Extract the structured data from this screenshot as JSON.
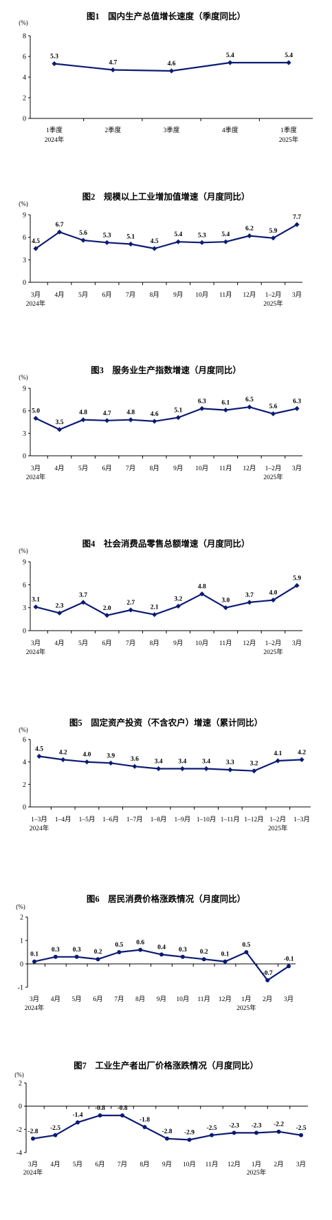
{
  "colors": {
    "line": "#0b1a73",
    "axis": "#000000"
  },
  "chart_data": [
    {
      "type": "line",
      "title": "图1　国内生产总值增长速度（季度同比）",
      "unit": "(%)",
      "ylim": [
        0,
        8
      ],
      "yticks": [
        0,
        2,
        4,
        6,
        8
      ],
      "categories": [
        "1季度",
        "2季度",
        "3季度",
        "4季度",
        "1季度"
      ],
      "year_labels": [
        {
          "index": 0,
          "text": "2024年"
        },
        {
          "index": 4,
          "text": "2025年"
        }
      ],
      "values": [
        5.3,
        4.7,
        4.6,
        5.4,
        5.4
      ],
      "value_labels": [
        "5.3",
        "4.7",
        "4.6",
        "5.4",
        "5.4"
      ]
    },
    {
      "type": "line",
      "title": "图2　规模以上工业增加值增速（月度同比）",
      "unit": "(%)",
      "ylim": [
        0,
        9
      ],
      "yticks": [
        0,
        3,
        6,
        9
      ],
      "categories": [
        "3月",
        "4月",
        "5月",
        "6月",
        "7月",
        "8月",
        "9月",
        "10月",
        "11月",
        "12月",
        "1–2月",
        "3月"
      ],
      "year_labels": [
        {
          "index": 0,
          "text": "2024年"
        },
        {
          "index": 10,
          "text": "2025年"
        }
      ],
      "values": [
        4.5,
        6.7,
        5.6,
        5.3,
        5.1,
        4.5,
        5.4,
        5.3,
        5.4,
        6.2,
        5.9,
        7.7
      ],
      "value_labels": [
        "4.5",
        "6.7",
        "5.6",
        "5.3",
        "5.1",
        "4.5",
        "5.4",
        "5.3",
        "5.4",
        "6.2",
        "5.9",
        "7.7"
      ]
    },
    {
      "type": "line",
      "title": "图3　服务业生产指数增速（月度同比）",
      "unit": "(%)",
      "ylim": [
        0,
        9
      ],
      "yticks": [
        0,
        3,
        6,
        9
      ],
      "categories": [
        "3月",
        "4月",
        "5月",
        "6月",
        "7月",
        "8月",
        "9月",
        "10月",
        "11月",
        "12月",
        "1–2月",
        "3月"
      ],
      "year_labels": [
        {
          "index": 0,
          "text": "2024年"
        },
        {
          "index": 10,
          "text": "2025年"
        }
      ],
      "values": [
        5.0,
        3.5,
        4.8,
        4.7,
        4.8,
        4.6,
        5.1,
        6.3,
        6.1,
        6.5,
        5.6,
        6.3
      ],
      "value_labels": [
        "5.0",
        "3.5",
        "4.8",
        "4.7",
        "4.8",
        "4.6",
        "5.1",
        "6.3",
        "6.1",
        "6.5",
        "5.6",
        "6.3"
      ]
    },
    {
      "type": "line",
      "title": "图4　社会消费品零售总额增速（月度同比）",
      "unit": "(%)",
      "ylim": [
        0,
        9
      ],
      "yticks": [
        0,
        3,
        6,
        9
      ],
      "categories": [
        "3月",
        "4月",
        "5月",
        "6月",
        "7月",
        "8月",
        "9月",
        "10月",
        "11月",
        "12月",
        "1–2月",
        "3月"
      ],
      "year_labels": [
        {
          "index": 0,
          "text": "2024年"
        },
        {
          "index": 10,
          "text": "2025年"
        }
      ],
      "values": [
        3.1,
        2.3,
        3.7,
        2.0,
        2.7,
        2.1,
        3.2,
        4.8,
        3.0,
        3.7,
        4.0,
        5.9
      ],
      "value_labels": [
        "3.1",
        "2.3",
        "3.7",
        "2.0",
        "2.7",
        "2.1",
        "3.2",
        "4.8",
        "3.0",
        "3.7",
        "4.0",
        "5.9"
      ]
    },
    {
      "type": "line",
      "title": "图5　固定资产投资（不含农户）增速（累计同比）",
      "unit": "(%)",
      "ylim": [
        0,
        6
      ],
      "yticks": [
        0,
        2,
        4,
        6
      ],
      "categories": [
        "1–3月",
        "1–4月",
        "1–5月",
        "1–6月",
        "1–7月",
        "1–8月",
        "1–9月",
        "1–10月",
        "1–11月",
        "1–12月",
        "1–2月",
        "1–3月"
      ],
      "year_labels": [
        {
          "index": 0,
          "text": "2024年"
        },
        {
          "index": 10,
          "text": "2025年"
        }
      ],
      "values": [
        4.5,
        4.2,
        4.0,
        3.9,
        3.6,
        3.4,
        3.4,
        3.4,
        3.3,
        3.2,
        4.1,
        4.2
      ],
      "value_labels": [
        "4.5",
        "4.2",
        "4.0",
        "3.9",
        "3.6",
        "3.4",
        "3.4",
        "3.4",
        "3.3",
        "3.2",
        "4.1",
        "4.2"
      ]
    },
    {
      "type": "line",
      "title": "图6　居民消费价格涨跌情况（月度同比）",
      "unit": "(%)",
      "ylim": [
        -1,
        2
      ],
      "yticks": [
        -1,
        0,
        1,
        2
      ],
      "categories": [
        "3月",
        "4月",
        "5月",
        "6月",
        "7月",
        "8月",
        "9月",
        "10月",
        "11月",
        "12月",
        "1月",
        "2月",
        "3月"
      ],
      "year_labels": [
        {
          "index": 0,
          "text": "2024年"
        },
        {
          "index": 10,
          "text": "2025年"
        }
      ],
      "values": [
        0.1,
        0.3,
        0.3,
        0.2,
        0.5,
        0.6,
        0.4,
        0.3,
        0.2,
        0.1,
        0.5,
        -0.7,
        -0.1
      ],
      "value_labels": [
        "0.1",
        "0.3",
        "0.3",
        "0.2",
        "0.5",
        "0.6",
        "0.4",
        "0.3",
        "0.2",
        "0.1",
        "0.5",
        "-0.7",
        "-0.1"
      ],
      "markers": "circle"
    },
    {
      "type": "line",
      "title": "图7　工业生产者出厂价格涨跌情况（月度同比）",
      "unit": "(%)",
      "ylim": [
        -4,
        2
      ],
      "yticks": [
        -4,
        -2,
        0,
        2
      ],
      "categories": [
        "3月",
        "4月",
        "5月",
        "6月",
        "7月",
        "8月",
        "9月",
        "10月",
        "11月",
        "12月",
        "1月",
        "2月",
        "3月"
      ],
      "year_labels": [
        {
          "index": 0,
          "text": "2024年"
        },
        {
          "index": 10,
          "text": "2025年"
        }
      ],
      "values": [
        -2.8,
        -2.5,
        -1.4,
        -0.8,
        -0.8,
        -1.8,
        -2.8,
        -2.9,
        -2.5,
        -2.3,
        -2.3,
        -2.2,
        -2.5
      ],
      "value_labels": [
        "-2.8",
        "-2.5",
        "-1.4",
        "-0.8",
        "-0.8",
        "-1.8",
        "-2.8",
        "-2.9",
        "-2.5",
        "-2.3",
        "-2.3",
        "-2.2",
        "-2.5"
      ],
      "markers": "circle"
    }
  ]
}
